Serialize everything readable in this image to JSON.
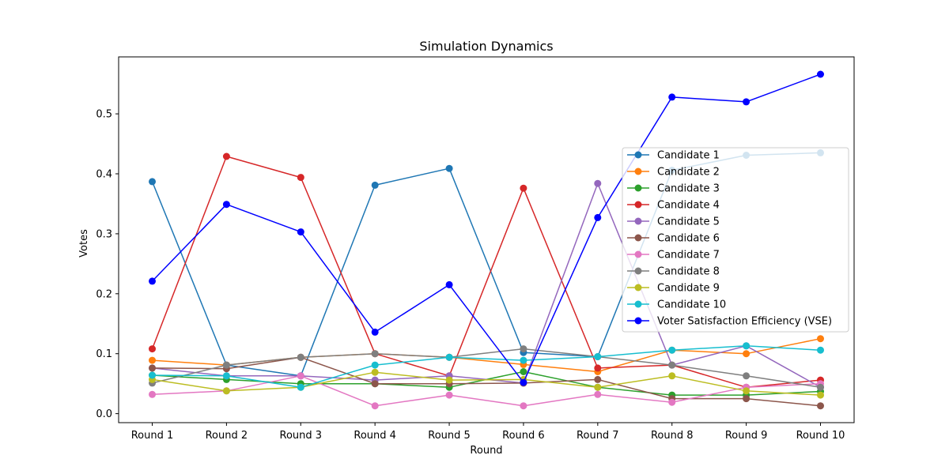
{
  "chart_data": {
    "type": "line",
    "title": "Simulation Dynamics",
    "xlabel": "Round",
    "ylabel": "Votes",
    "categories": [
      "Round 1",
      "Round 2",
      "Round 3",
      "Round 4",
      "Round 5",
      "Round 6",
      "Round 7",
      "Round 8",
      "Round 9",
      "Round 10"
    ],
    "ylim": [
      -0.015,
      0.595
    ],
    "yticks": [
      0.0,
      0.1,
      0.2,
      0.3,
      0.4,
      0.5
    ],
    "ytick_labels": [
      "0.0",
      "0.1",
      "0.2",
      "0.3",
      "0.4",
      "0.5"
    ],
    "grid": false,
    "legend_position": "right",
    "series": [
      {
        "name": "Candidate 1",
        "color": "#1f77b4",
        "values": [
          0.387,
          0.081,
          0.063,
          0.381,
          0.409,
          0.102,
          0.095,
          0.406,
          0.431,
          0.435
        ]
      },
      {
        "name": "Candidate 2",
        "color": "#ff7f0e",
        "values": [
          0.089,
          0.081,
          0.094,
          0.1,
          0.094,
          0.082,
          0.07,
          0.106,
          0.1,
          0.125
        ]
      },
      {
        "name": "Candidate 3",
        "color": "#2ca02c",
        "values": [
          0.064,
          0.057,
          0.05,
          0.05,
          0.044,
          0.07,
          0.044,
          0.031,
          0.031,
          0.037
        ]
      },
      {
        "name": "Candidate 4",
        "color": "#d62728",
        "values": [
          0.108,
          0.429,
          0.394,
          0.1,
          0.063,
          0.376,
          0.076,
          0.081,
          0.044,
          0.056
        ]
      },
      {
        "name": "Candidate 5",
        "color": "#9467bd",
        "values": [
          0.076,
          0.063,
          0.063,
          0.056,
          0.063,
          0.051,
          0.384,
          0.081,
          0.113,
          0.044
        ]
      },
      {
        "name": "Candidate 6",
        "color": "#8c564b",
        "values": [
          0.076,
          0.075,
          0.094,
          0.05,
          0.05,
          0.051,
          0.057,
          0.025,
          0.025,
          0.013
        ]
      },
      {
        "name": "Candidate 7",
        "color": "#e377c2",
        "values": [
          0.032,
          0.038,
          0.063,
          0.013,
          0.031,
          0.013,
          0.032,
          0.019,
          0.044,
          0.05
        ]
      },
      {
        "name": "Candidate 8",
        "color": "#7f7f7f",
        "values": [
          0.051,
          0.081,
          0.094,
          0.1,
          0.094,
          0.108,
          0.095,
          0.081,
          0.063,
          0.044
        ]
      },
      {
        "name": "Candidate 9",
        "color": "#bcbd22",
        "values": [
          0.057,
          0.038,
          0.044,
          0.069,
          0.056,
          0.057,
          0.044,
          0.063,
          0.038,
          0.031
        ]
      },
      {
        "name": "Candidate 10",
        "color": "#17becf",
        "values": [
          0.064,
          0.063,
          0.044,
          0.081,
          0.094,
          0.089,
          0.095,
          0.106,
          0.113,
          0.106
        ]
      },
      {
        "name": "Voter Satisfaction Efficiency (VSE)",
        "color": "#0000ff",
        "values": [
          0.221,
          0.349,
          0.303,
          0.136,
          0.215,
          0.052,
          0.327,
          0.528,
          0.52,
          0.566
        ]
      }
    ]
  }
}
